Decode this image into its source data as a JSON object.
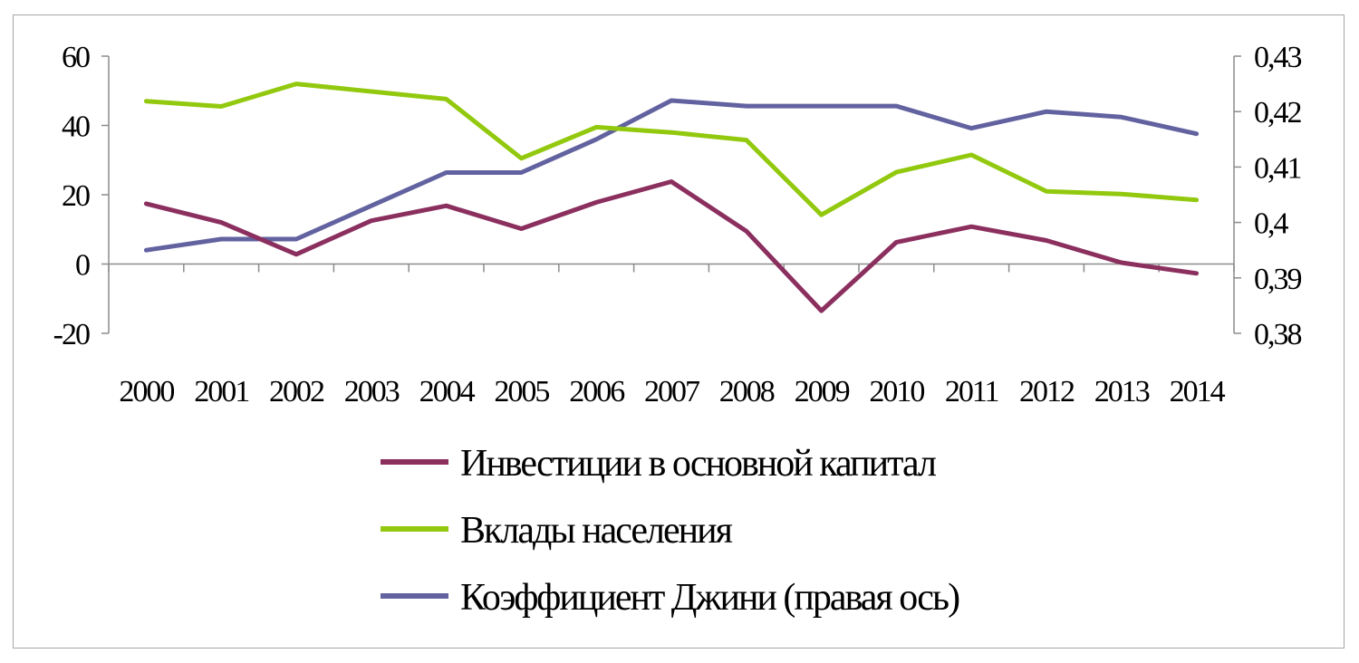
{
  "chart_data": {
    "type": "line",
    "x": [
      "2000",
      "2001",
      "2002",
      "2003",
      "2004",
      "2005",
      "2006",
      "2007",
      "2008",
      "2009",
      "2010",
      "2011",
      "2012",
      "2013",
      "2014"
    ],
    "y_left": {
      "min": -20,
      "max": 60,
      "step": 20,
      "ticks": [
        "-20",
        "0",
        "20",
        "40",
        "60"
      ]
    },
    "y_right": {
      "min": 0.38,
      "max": 0.43,
      "step": 0.01,
      "ticks": [
        "0,38",
        "0,39",
        "0,4",
        "0,41",
        "0,42",
        "0,43"
      ]
    },
    "grid": false,
    "legend_position": "bottom",
    "series": [
      {
        "name": "Инвестиции в основной капитал",
        "axis": "left",
        "color": "#8B2F5F",
        "values": [
          17.4,
          12.0,
          2.8,
          12.5,
          16.8,
          10.2,
          17.8,
          23.8,
          9.5,
          -13.5,
          6.3,
          10.8,
          6.8,
          0.4,
          -2.7
        ]
      },
      {
        "name": "Вклады населения",
        "axis": "left",
        "color": "#92C90E",
        "values": [
          47.0,
          45.5,
          52.0,
          49.8,
          47.6,
          30.5,
          39.5,
          38.0,
          35.8,
          14.2,
          26.5,
          31.5,
          21.0,
          20.2,
          18.5
        ]
      },
      {
        "name": "Коэффициент Джини (правая ось)",
        "axis": "right",
        "color": "#6262A0",
        "values": [
          0.395,
          0.397,
          0.397,
          0.403,
          0.409,
          0.409,
          0.415,
          0.422,
          0.421,
          0.421,
          0.421,
          0.417,
          0.42,
          0.419,
          0.416
        ]
      }
    ]
  }
}
